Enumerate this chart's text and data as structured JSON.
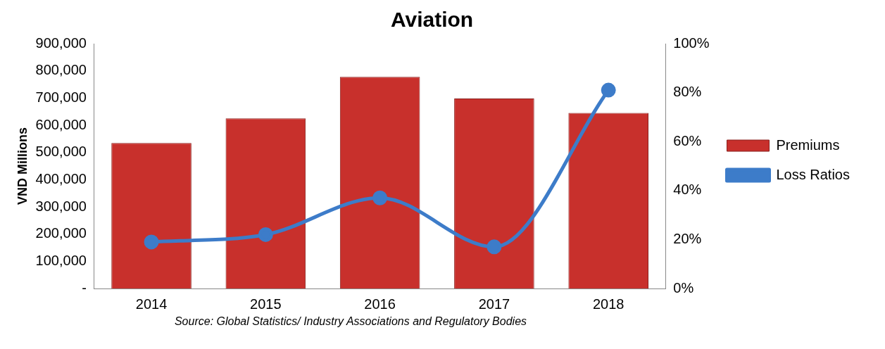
{
  "chart_data": {
    "type": "bar",
    "title": "Aviation",
    "ylabel": "VND Millions",
    "categories": [
      "2014",
      "2015",
      "2016",
      "2017",
      "2018"
    ],
    "series": [
      {
        "name": "Premiums",
        "color": "#c8302c",
        "values": [
          535000,
          625000,
          778000,
          698000,
          645000
        ]
      },
      {
        "name": "Loss Ratios",
        "type": "line",
        "axis": "y2",
        "color": "#3d7cc9",
        "values": [
          19,
          22,
          37,
          17,
          81
        ]
      }
    ],
    "ylim": [
      0,
      900000
    ],
    "yticks": [
      {
        "value": 0,
        "label": "-"
      },
      {
        "value": 100000,
        "label": "100,000"
      },
      {
        "value": 200000,
        "label": "200,000"
      },
      {
        "value": 300000,
        "label": "300,000"
      },
      {
        "value": 400000,
        "label": "400,000"
      },
      {
        "value": 500000,
        "label": "500,000"
      },
      {
        "value": 600000,
        "label": "600,000"
      },
      {
        "value": 700000,
        "label": "700,000"
      },
      {
        "value": 800000,
        "label": "800,000"
      },
      {
        "value": 900000,
        "label": "900,000"
      }
    ],
    "y2lim": [
      0,
      100
    ],
    "y2ticks": [
      {
        "value": 0,
        "label": "0%"
      },
      {
        "value": 20,
        "label": "20%"
      },
      {
        "value": 40,
        "label": "40%"
      },
      {
        "value": 60,
        "label": "60%"
      },
      {
        "value": 80,
        "label": "80%"
      },
      {
        "value": 100,
        "label": "100%"
      }
    ],
    "grid": false,
    "legend": "right",
    "marker": "circle",
    "line_style": "solid",
    "annotations": [
      "Source: Global Statistics/ Industry Associations and Regulatory Bodies"
    ]
  }
}
